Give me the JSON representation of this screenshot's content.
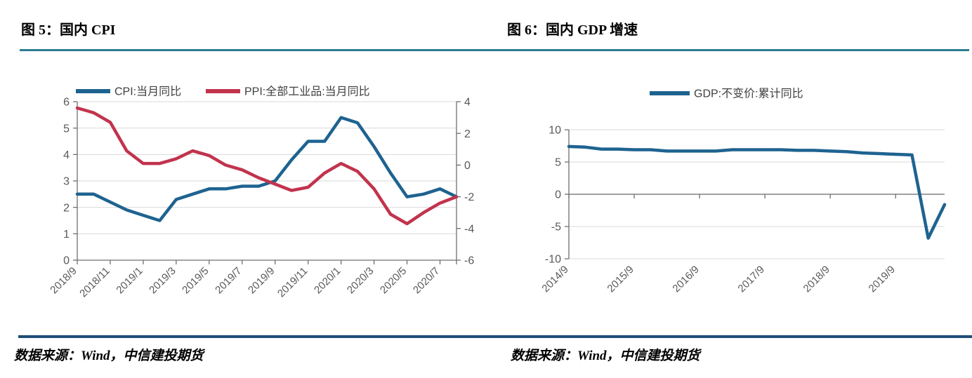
{
  "panels": [
    {
      "title": "图 5：国内 CPI",
      "source": "数据来源：Wind，中信建投期货"
    },
    {
      "title": "图 6：国内 GDP 增速",
      "source": "数据来源：Wind，中信建投期货"
    }
  ],
  "colors": {
    "blue_line": "#1e6390",
    "red_line": "#c2334d",
    "title_rule": "#2e7b90",
    "footer_rule": "#1f4e79",
    "grid": "#d9d9d9",
    "axis": "#6f6f6f",
    "zero_line": "#808080",
    "tick_text": "#595959",
    "legend_text": "#404040"
  },
  "chart_data": [
    {
      "type": "line",
      "title": "图 5：国内 CPI",
      "x": [
        "2018/9",
        "2018/10",
        "2018/11",
        "2018/12",
        "2019/1",
        "2019/2",
        "2019/3",
        "2019/4",
        "2019/5",
        "2019/6",
        "2019/7",
        "2019/8",
        "2019/9",
        "2019/10",
        "2019/11",
        "2019/12",
        "2020/1",
        "2020/2",
        "2020/3",
        "2020/4",
        "2020/5",
        "2020/6",
        "2020/7",
        "2020/8"
      ],
      "x_tick_labels": [
        "2018/9",
        "2018/11",
        "2019/1",
        "2019/3",
        "2019/5",
        "2019/7",
        "2019/9",
        "2019/11",
        "2020/1",
        "2020/3",
        "2020/5",
        "2020/7"
      ],
      "series": [
        {
          "name": "CPI:当月同比",
          "axis": "left",
          "color": "#1e6390",
          "values": [
            2.5,
            2.5,
            2.2,
            1.9,
            1.7,
            1.5,
            2.3,
            2.5,
            2.7,
            2.7,
            2.8,
            2.8,
            3.0,
            3.8,
            4.5,
            4.5,
            5.4,
            5.2,
            4.3,
            3.3,
            2.4,
            2.5,
            2.7,
            2.4
          ]
        },
        {
          "name": "PPI:全部工业品:当月同比",
          "axis": "right",
          "color": "#c2334d",
          "values": [
            3.6,
            3.3,
            2.7,
            0.9,
            0.1,
            0.1,
            0.4,
            0.9,
            0.6,
            0.0,
            -0.3,
            -0.8,
            -1.2,
            -1.6,
            -1.4,
            -0.5,
            0.1,
            -0.4,
            -1.5,
            -3.1,
            -3.7,
            -3.0,
            -2.4,
            -2.0
          ]
        }
      ],
      "left_axis": {
        "min": 0,
        "max": 6,
        "ticks": [
          0,
          1,
          2,
          3,
          4,
          5,
          6
        ]
      },
      "right_axis": {
        "min": -6,
        "max": 4,
        "ticks": [
          -6,
          -4,
          -2,
          0,
          2,
          4
        ]
      },
      "grid": true,
      "legend_position": "top",
      "x_axis_position": "bottom"
    },
    {
      "type": "line",
      "title": "图 6：国内 GDP 增速",
      "x": [
        "2014/9",
        "2014/12",
        "2015/3",
        "2015/6",
        "2015/9",
        "2015/12",
        "2016/3",
        "2016/6",
        "2016/9",
        "2016/12",
        "2017/3",
        "2017/6",
        "2017/9",
        "2017/12",
        "2018/3",
        "2018/6",
        "2018/9",
        "2018/12",
        "2019/3",
        "2019/6",
        "2019/9",
        "2019/12",
        "2020/3",
        "2020/6"
      ],
      "x_tick_labels": [
        "2014/9",
        "2015/9",
        "2016/9",
        "2017/9",
        "2018/9",
        "2019/9"
      ],
      "series": [
        {
          "name": "GDP:不变价:累计同比",
          "axis": "left",
          "color": "#1e6390",
          "values": [
            7.4,
            7.3,
            7.0,
            7.0,
            6.9,
            6.9,
            6.7,
            6.7,
            6.7,
            6.7,
            6.9,
            6.9,
            6.9,
            6.9,
            6.8,
            6.8,
            6.7,
            6.6,
            6.4,
            6.3,
            6.2,
            6.1,
            -6.8,
            -1.6
          ]
        }
      ],
      "left_axis": {
        "min": -10,
        "max": 10,
        "ticks": [
          -10,
          -5,
          0,
          5,
          10
        ]
      },
      "grid": true,
      "legend_position": "top",
      "x_axis_position": "zero"
    }
  ]
}
